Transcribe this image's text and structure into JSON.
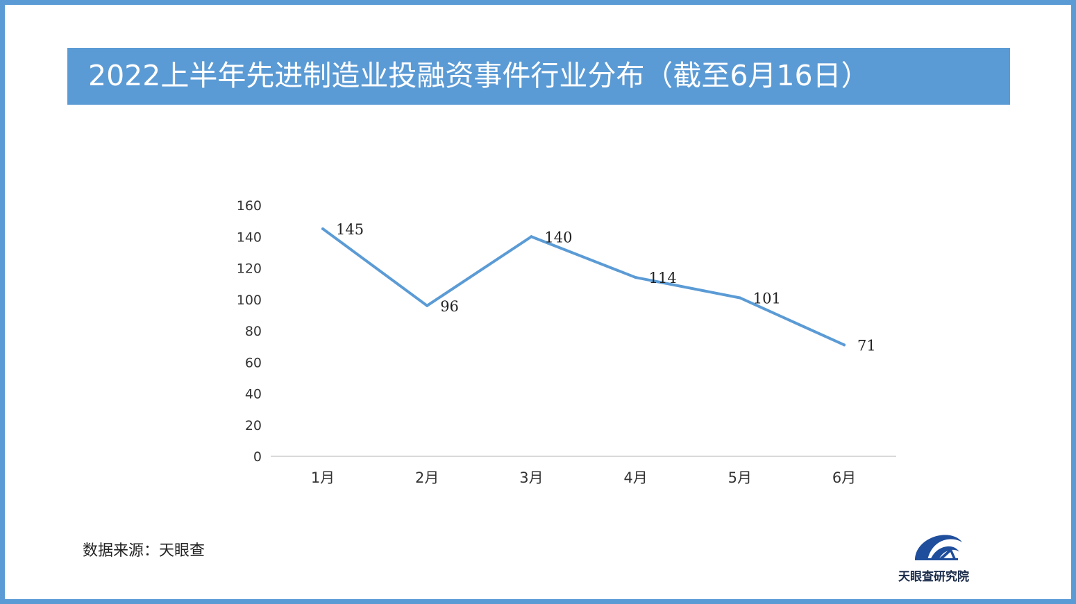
{
  "header": {
    "title": "2022上半年先进制造业投融资事件行业分布（截至6月16日）"
  },
  "footer": {
    "source": "数据来源：天眼查",
    "logo_label": "天眼查研究院"
  },
  "colors": {
    "frame": "#5b9bd5",
    "title_bar": "#5b9bd5",
    "line": "#5b9bd5",
    "axis": "#d9d9d9",
    "logo_dark": "#1f4e9c",
    "logo_light": "#ffffff"
  },
  "icons": {
    "logo": "tianyancha-logo-icon"
  },
  "chart_data": {
    "type": "line",
    "categories": [
      "1月",
      "2月",
      "3月",
      "4月",
      "5月",
      "6月"
    ],
    "series": [
      {
        "values": [
          145,
          96,
          140,
          114,
          101,
          71
        ]
      }
    ],
    "data_labels": [
      "145",
      "96",
      "140",
      "114",
      "101",
      "71"
    ],
    "ylim": [
      0,
      160
    ],
    "yticks": [
      0,
      20,
      40,
      60,
      80,
      100,
      120,
      140,
      160
    ],
    "ytick_labels": [
      "0",
      "20",
      "40",
      "60",
      "80",
      "100",
      "120",
      "140",
      "160"
    ],
    "grid": false,
    "legend": "none"
  }
}
